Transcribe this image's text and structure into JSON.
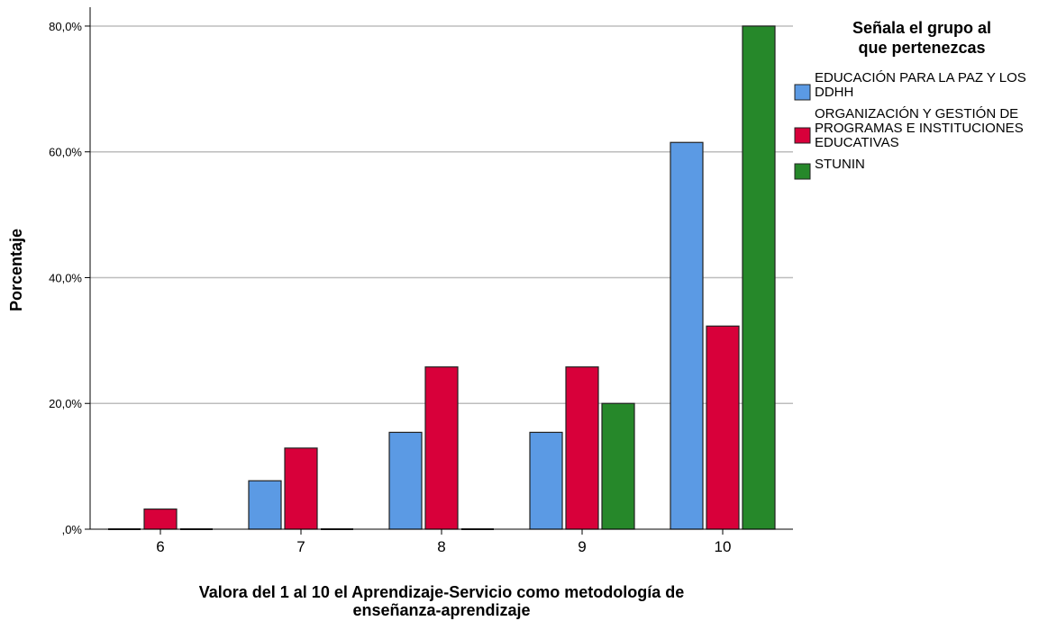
{
  "chart_data": {
    "type": "bar",
    "xlabel": "Valora del 1 al 10 el Aprendizaje-Servicio como metodología de enseñanza-aprendizaje",
    "ylabel": "Porcentaje",
    "categories": [
      "6",
      "7",
      "8",
      "9",
      "10"
    ],
    "y_ticks": [
      ",0%",
      "20,0%",
      "40,0%",
      "60,0%",
      "80,0%"
    ],
    "ylim": [
      0,
      83
    ],
    "grid": true,
    "legend": {
      "title": "Señala el grupo al que pertenezcas",
      "placement": "right"
    },
    "series": [
      {
        "name": "EDUCACIÓN PARA LA PAZ Y LOS DDHH",
        "color": "#5b9ae4",
        "values": [
          0,
          7.7,
          15.4,
          15.4,
          61.5
        ]
      },
      {
        "name": "ORGANIZACIÓN Y GESTIÓN DE PROGRAMAS E INSTITUCIONES EDUCATIVAS",
        "color": "#d8003a",
        "values": [
          3.2,
          12.9,
          25.8,
          25.8,
          32.3
        ]
      },
      {
        "name": "STUNIN",
        "color": "#26882a",
        "values": [
          0,
          0,
          0,
          20.0,
          80.0
        ]
      }
    ]
  }
}
